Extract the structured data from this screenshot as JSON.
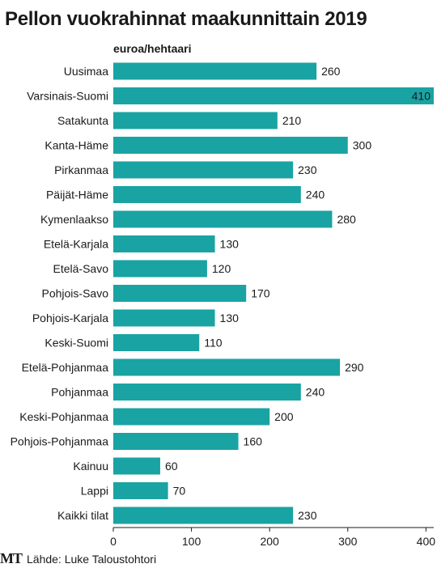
{
  "chart_data": {
    "type": "bar",
    "orientation": "horizontal",
    "title": "Pellon vuokrahinnat maakunnittain 2019",
    "ylabel": "euroa/hehtaari",
    "categories": [
      "Uusimaa",
      "Varsinais-Suomi",
      "Satakunta",
      "Kanta-Häme",
      "Pirkanmaa",
      "Päijät-Häme",
      "Kymenlaakso",
      "Etelä-Karjala",
      "Etelä-Savo",
      "Pohjois-Savo",
      "Pohjois-Karjala",
      "Keski-Suomi",
      "Etelä-Pohjanmaa",
      "Pohjanmaa",
      "Keski-Pohjanmaa",
      "Pohjois-Pohjanmaa",
      "Kainuu",
      "Lappi",
      "Kaikki tilat"
    ],
    "values": [
      260,
      410,
      210,
      300,
      230,
      240,
      280,
      130,
      120,
      170,
      130,
      110,
      290,
      240,
      200,
      160,
      60,
      70,
      230
    ],
    "xlim": [
      0,
      410
    ],
    "xticks": [
      0,
      100,
      200,
      300,
      400
    ],
    "grid": false,
    "bar_color": "#1aa3a3"
  },
  "footer": {
    "logo": "MT",
    "source": "Lähde: Luke Taloustohtori"
  }
}
